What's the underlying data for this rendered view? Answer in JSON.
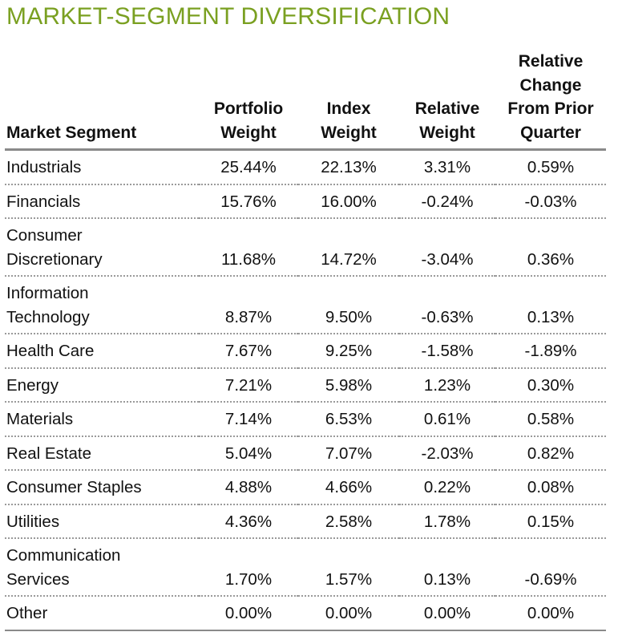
{
  "title": "MARKET-SEGMENT DIVERSIFICATION",
  "colors": {
    "title": "#7aa021",
    "header_rule": "#8a8a8a",
    "row_rule": "#9a9a9a"
  },
  "table": {
    "headers": {
      "segment": "Market Segment",
      "portfolio_weight": "Portfolio\nWeight",
      "index_weight": "Index\nWeight",
      "relative_weight": "Relative\nWeight",
      "relative_change": "Relative\nChange\nFrom Prior\nQuarter"
    },
    "rows": [
      {
        "segment": "Industrials",
        "portfolio": "25.44%",
        "index": "22.13%",
        "relative": "3.31%",
        "change": "0.59%"
      },
      {
        "segment": "Financials",
        "portfolio": "15.76%",
        "index": "16.00%",
        "relative": "-0.24%",
        "change": "-0.03%"
      },
      {
        "segment": "Consumer\nDiscretionary",
        "portfolio": "11.68%",
        "index": "14.72%",
        "relative": "-3.04%",
        "change": "0.36%"
      },
      {
        "segment": "Information\nTechnology",
        "portfolio": "8.87%",
        "index": "9.50%",
        "relative": "-0.63%",
        "change": "0.13%"
      },
      {
        "segment": "Health Care",
        "portfolio": "7.67%",
        "index": "9.25%",
        "relative": "-1.58%",
        "change": "-1.89%"
      },
      {
        "segment": "Energy",
        "portfolio": "7.21%",
        "index": "5.98%",
        "relative": "1.23%",
        "change": "0.30%"
      },
      {
        "segment": "Materials",
        "portfolio": "7.14%",
        "index": "6.53%",
        "relative": "0.61%",
        "change": "0.58%"
      },
      {
        "segment": "Real Estate",
        "portfolio": "5.04%",
        "index": "7.07%",
        "relative": "-2.03%",
        "change": "0.82%"
      },
      {
        "segment": "Consumer Staples",
        "portfolio": "4.88%",
        "index": "4.66%",
        "relative": "0.22%",
        "change": "0.08%"
      },
      {
        "segment": "Utilities",
        "portfolio": "4.36%",
        "index": "2.58%",
        "relative": "1.78%",
        "change": "0.15%"
      },
      {
        "segment": "Communication\nServices",
        "portfolio": "1.70%",
        "index": "1.57%",
        "relative": "0.13%",
        "change": "-0.69%"
      },
      {
        "segment": "Other",
        "portfolio": "0.00%",
        "index": "0.00%",
        "relative": "0.00%",
        "change": "0.00%"
      }
    ]
  }
}
